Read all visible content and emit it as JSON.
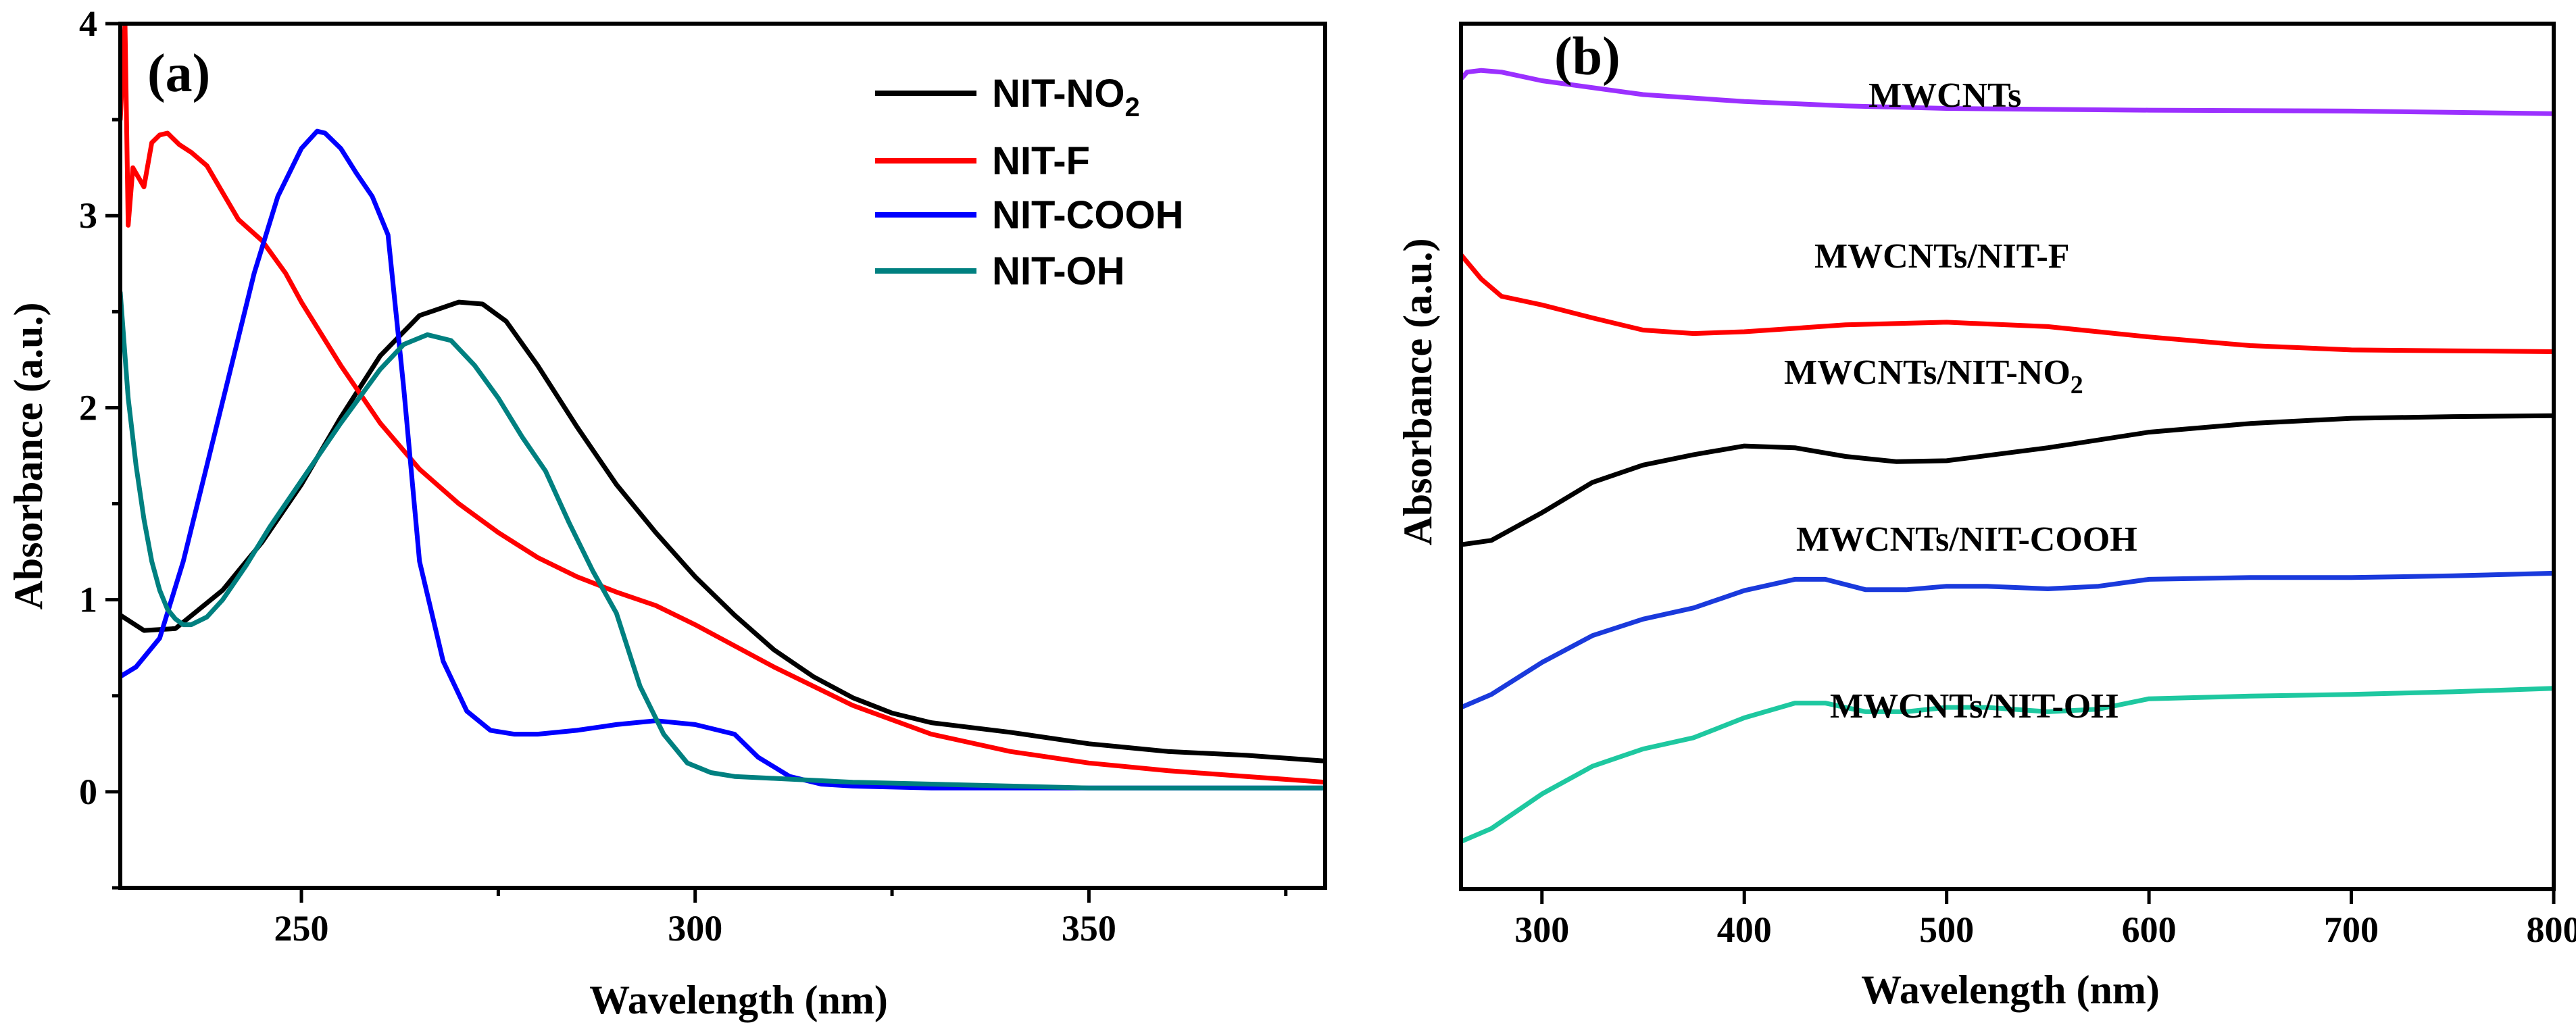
{
  "chart_data": [
    {
      "type": "line",
      "panel_label": "(a)",
      "xlabel": "Wavelength (nm)",
      "ylabel": "Absorbance (a.u.)",
      "xlim": [
        227,
        380
      ],
      "ylim": [
        -0.5,
        4
      ],
      "xticks": [
        250,
        300,
        350
      ],
      "xtick_labels": [
        "250",
        "300",
        "350"
      ],
      "yticks": [
        0,
        1,
        2,
        3,
        4
      ],
      "ytick_labels": [
        "0",
        "1",
        "2",
        "3",
        "4"
      ],
      "legend_position": "top-right",
      "series": [
        {
          "name": "NIT-NO2",
          "legend_main": "NIT-NO",
          "legend_sub": "2",
          "color": "#000000",
          "x": [
            227,
            230,
            234,
            240,
            245,
            250,
            255,
            260,
            265,
            270,
            273,
            276,
            280,
            285,
            290,
            295,
            300,
            305,
            310,
            315,
            320,
            325,
            330,
            340,
            350,
            360,
            370,
            380
          ],
          "y": [
            0.92,
            0.84,
            0.85,
            1.05,
            1.3,
            1.6,
            1.95,
            2.27,
            2.48,
            2.55,
            2.54,
            2.45,
            2.22,
            1.9,
            1.6,
            1.35,
            1.12,
            0.92,
            0.74,
            0.6,
            0.49,
            0.41,
            0.36,
            0.31,
            0.25,
            0.21,
            0.19,
            0.16
          ]
        },
        {
          "name": "NIT-F",
          "legend_main": "NIT-F",
          "legend_sub": "",
          "color": "#ff0000",
          "x": [
            227,
            227.6,
            228,
            228.6,
            230,
            231,
            232,
            233,
            234.5,
            236,
            238,
            240,
            242,
            245,
            248,
            250,
            255,
            260,
            265,
            270,
            275,
            280,
            285,
            290,
            295,
            300,
            310,
            320,
            330,
            340,
            350,
            360,
            370,
            380
          ],
          "y": [
            3.5,
            4.0,
            2.95,
            3.25,
            3.15,
            3.38,
            3.42,
            3.43,
            3.37,
            3.33,
            3.26,
            3.12,
            2.98,
            2.87,
            2.7,
            2.55,
            2.22,
            1.92,
            1.68,
            1.5,
            1.35,
            1.22,
            1.12,
            1.04,
            0.97,
            0.87,
            0.65,
            0.45,
            0.3,
            0.21,
            0.15,
            0.11,
            0.08,
            0.05
          ]
        },
        {
          "name": "NIT-COOH",
          "legend_main": "NIT-COOH",
          "legend_sub": "",
          "color": "#0000ff",
          "x": [
            227,
            229,
            232,
            235,
            238,
            241,
            244,
            247,
            250,
            252,
            253,
            255,
            257,
            259,
            261,
            263,
            265,
            268,
            271,
            274,
            277,
            280,
            285,
            290,
            295,
            300,
            305,
            308,
            312,
            316,
            320,
            330,
            340,
            350,
            360,
            370,
            380
          ],
          "y": [
            0.6,
            0.65,
            0.8,
            1.2,
            1.7,
            2.2,
            2.7,
            3.1,
            3.35,
            3.44,
            3.43,
            3.35,
            3.22,
            3.1,
            2.9,
            2.1,
            1.2,
            0.68,
            0.42,
            0.32,
            0.3,
            0.3,
            0.32,
            0.35,
            0.37,
            0.35,
            0.3,
            0.18,
            0.08,
            0.04,
            0.03,
            0.02,
            0.02,
            0.02,
            0.02,
            0.02,
            0.02
          ]
        },
        {
          "name": "NIT-OH",
          "legend_main": "NIT-OH",
          "legend_sub": "",
          "color": "#008080",
          "x": [
            227,
            228,
            229,
            230,
            231,
            232,
            233,
            234,
            235,
            236,
            238,
            240,
            243,
            246,
            250,
            255,
            260,
            263,
            266,
            269,
            272,
            275,
            278,
            281,
            284,
            287,
            290,
            293,
            296,
            299,
            302,
            305,
            310,
            320,
            330,
            340,
            350,
            360,
            370,
            380
          ],
          "y": [
            2.6,
            2.05,
            1.7,
            1.42,
            1.2,
            1.05,
            0.95,
            0.9,
            0.87,
            0.87,
            0.91,
            1.0,
            1.18,
            1.38,
            1.62,
            1.92,
            2.2,
            2.33,
            2.38,
            2.35,
            2.22,
            2.05,
            1.85,
            1.67,
            1.4,
            1.15,
            0.93,
            0.55,
            0.3,
            0.15,
            0.1,
            0.08,
            0.07,
            0.05,
            0.04,
            0.03,
            0.02,
            0.02,
            0.02,
            0.02
          ]
        }
      ]
    },
    {
      "type": "line",
      "panel_label": "(b)",
      "xlabel": "Wavelength (nm)",
      "ylabel": "Absorbance (a.u.)",
      "xlim": [
        260,
        800
      ],
      "ylim": [
        0,
        10
      ],
      "xticks": [
        300,
        400,
        500,
        600,
        700,
        800
      ],
      "xtick_labels": [
        "300",
        "400",
        "500",
        "600",
        "700",
        "800"
      ],
      "y_ticks_labeled": false,
      "series": [
        {
          "name": "MWCNTs",
          "label_main": "MWCNTs",
          "label_sub": "",
          "color": "#9b30ff",
          "x": [
            260,
            263,
            270,
            280,
            300,
            350,
            400,
            450,
            500,
            600,
            700,
            800
          ],
          "y": [
            9.36,
            9.44,
            9.46,
            9.44,
            9.34,
            9.18,
            9.1,
            9.05,
            9.02,
            9.0,
            8.99,
            8.96
          ]
        },
        {
          "name": "MWCNTs/NIT-F",
          "label_main": "MWCNTs/NIT-F",
          "label_sub": "",
          "color": "#ff0000",
          "x": [
            260,
            270,
            280,
            300,
            325,
            350,
            375,
            400,
            450,
            500,
            550,
            600,
            650,
            700,
            750,
            800
          ],
          "y": [
            7.33,
            7.05,
            6.85,
            6.75,
            6.6,
            6.46,
            6.42,
            6.44,
            6.52,
            6.55,
            6.5,
            6.38,
            6.28,
            6.23,
            6.22,
            6.21
          ]
        },
        {
          "name": "MWCNTs/NIT-NO2",
          "label_main": "MWCNTs/NIT-NO",
          "label_sub": "2",
          "color": "#000000",
          "x": [
            260,
            275,
            300,
            325,
            350,
            375,
            400,
            425,
            450,
            475,
            500,
            550,
            600,
            650,
            700,
            750,
            800
          ],
          "y": [
            3.98,
            4.03,
            4.35,
            4.7,
            4.9,
            5.02,
            5.12,
            5.1,
            5.0,
            4.94,
            4.95,
            5.1,
            5.28,
            5.38,
            5.44,
            5.46,
            5.47
          ]
        },
        {
          "name": "MWCNTs/NIT-COOH",
          "label_main": "MWCNTs/NIT-COOH",
          "label_sub": "",
          "color": "#1a3adc",
          "x": [
            260,
            275,
            300,
            325,
            350,
            375,
            400,
            425,
            440,
            460,
            480,
            500,
            520,
            550,
            575,
            600,
            650,
            700,
            750,
            800
          ],
          "y": [
            2.1,
            2.25,
            2.62,
            2.93,
            3.12,
            3.25,
            3.45,
            3.58,
            3.58,
            3.46,
            3.46,
            3.5,
            3.5,
            3.47,
            3.5,
            3.58,
            3.6,
            3.6,
            3.62,
            3.65
          ]
        },
        {
          "name": "MWCNTs/NIT-OH",
          "label_main": "MWCNTs/NIT-OH",
          "label_sub": "",
          "color": "#1ec8a0",
          "x": [
            260,
            275,
            300,
            325,
            350,
            375,
            400,
            425,
            440,
            460,
            480,
            500,
            520,
            550,
            575,
            600,
            650,
            700,
            750,
            800
          ],
          "y": [
            0.55,
            0.7,
            1.1,
            1.42,
            1.62,
            1.75,
            1.98,
            2.15,
            2.15,
            2.05,
            2.05,
            2.1,
            2.1,
            2.05,
            2.08,
            2.2,
            2.23,
            2.25,
            2.28,
            2.32
          ]
        }
      ]
    }
  ]
}
